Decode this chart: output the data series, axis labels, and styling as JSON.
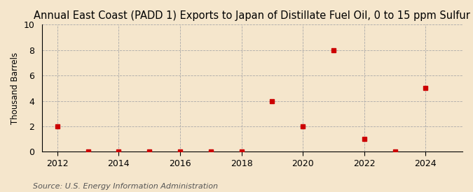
{
  "title": "Annual East Coast (PADD 1) Exports to Japan of Distillate Fuel Oil, 0 to 15 ppm Sulfur",
  "ylabel": "Thousand Barrels",
  "source": "Source: U.S. Energy Information Administration",
  "years": [
    2012,
    2013,
    2014,
    2015,
    2016,
    2017,
    2018,
    2019,
    2020,
    2021,
    2022,
    2023,
    2024
  ],
  "values": [
    2,
    0,
    0,
    0,
    0,
    0,
    0,
    4,
    2,
    8,
    1,
    0,
    5
  ],
  "xlim": [
    2011.5,
    2025.2
  ],
  "ylim": [
    0,
    10
  ],
  "yticks": [
    0,
    2,
    4,
    6,
    8,
    10
  ],
  "xticks": [
    2012,
    2014,
    2016,
    2018,
    2020,
    2022,
    2024
  ],
  "marker_color": "#cc0000",
  "marker": "s",
  "marker_size": 4,
  "bg_color": "#f5e6cc",
  "grid_color": "#aaaaaa",
  "title_fontsize": 10.5,
  "label_fontsize": 8.5,
  "tick_fontsize": 9,
  "source_fontsize": 8
}
